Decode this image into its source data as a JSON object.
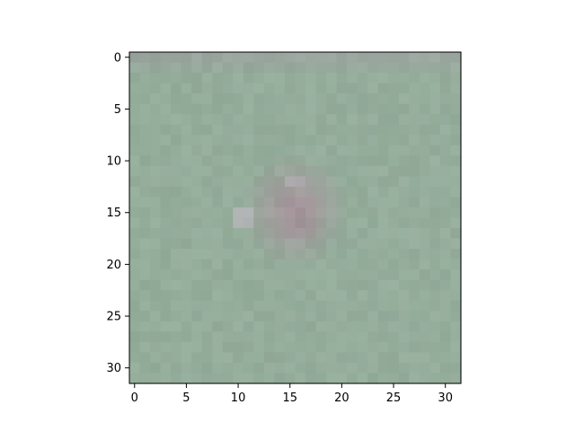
{
  "chart_data": {
    "type": "heatmap",
    "title": "",
    "xlabel": "",
    "ylabel": "",
    "grid": false,
    "image_shape": [
      32,
      32
    ],
    "xlim": [
      -0.5,
      31.5
    ],
    "ylim": [
      31.5,
      -0.5
    ],
    "y_inverted": true,
    "xticks": [
      0,
      5,
      10,
      15,
      20,
      25,
      30
    ],
    "xtick_labels": [
      "0",
      "5",
      "10",
      "15",
      "20",
      "25",
      "30"
    ],
    "yticks": [
      0,
      5,
      10,
      15,
      20,
      25,
      30
    ],
    "ytick_labels": [
      "0",
      "5",
      "10",
      "15",
      "20",
      "25",
      "30"
    ],
    "colors": {
      "background": "#94AC9A",
      "top_band": "#9AA49E",
      "subject": "#A8969E",
      "subject_highlight": "#BBB5BE",
      "subject_shadow": "#9A8A91"
    }
  }
}
